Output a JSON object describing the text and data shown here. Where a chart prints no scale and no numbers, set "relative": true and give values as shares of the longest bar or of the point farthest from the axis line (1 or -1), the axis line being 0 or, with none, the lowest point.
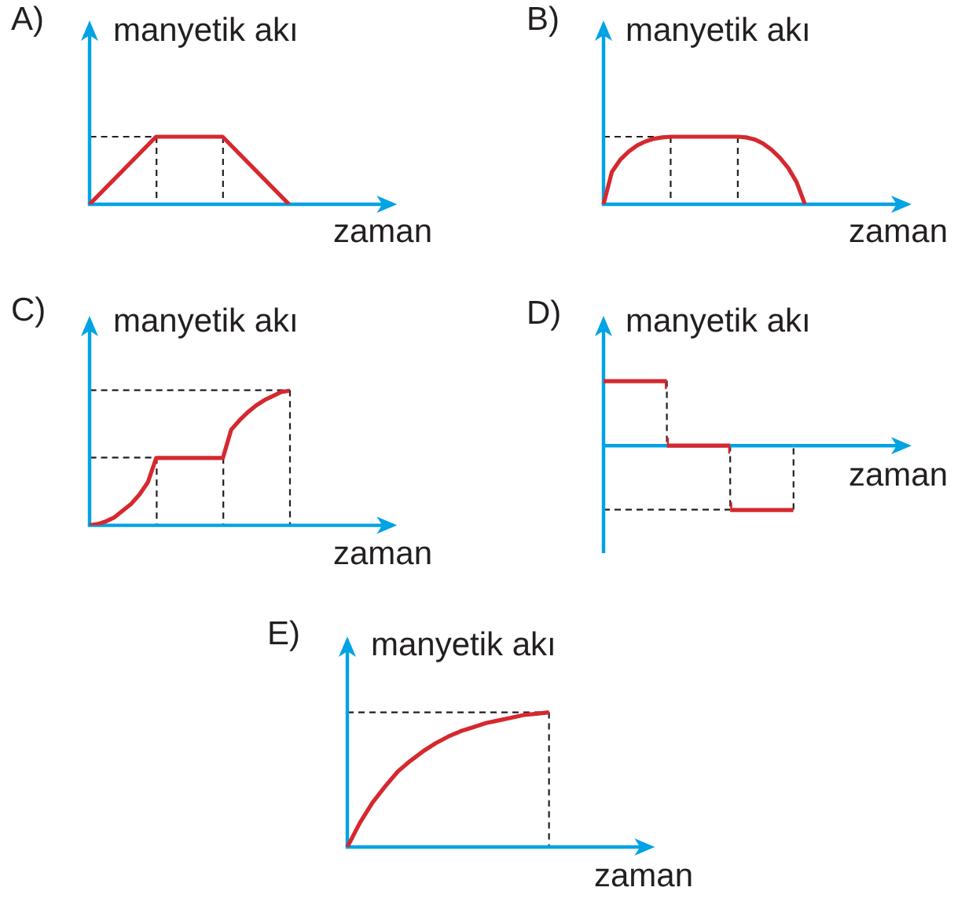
{
  "chart_data": [
    {
      "type": "line",
      "title": "A)",
      "xlabel": "zaman",
      "ylabel": "manyetik akı",
      "relative": true,
      "tick_labels": false,
      "categories": [
        null,
        null,
        null,
        null
      ],
      "series": [
        {
          "color": "#d6282e",
          "values": [
            0,
            1,
            1,
            0
          ]
        }
      ]
    },
    {
      "type": "line",
      "title": "B)",
      "xlabel": "zaman",
      "ylabel": "manyetik akı",
      "relative": true,
      "tick_labels": false,
      "categories": [
        null,
        null,
        null,
        null,
        null,
        null,
        null,
        null,
        null,
        null,
        null,
        null,
        null,
        null,
        null,
        null,
        null,
        null,
        null,
        null,
        null,
        null,
        null,
        null,
        null
      ],
      "series": [
        {
          "color": "#d6282e",
          "values": [
            0,
            0.48,
            0.66,
            0.78,
            0.87,
            0.93,
            0.97,
            0.99,
            1,
            1,
            1,
            1,
            1,
            1,
            1,
            1,
            1,
            0.99,
            0.96,
            0.9,
            0.81,
            0.69,
            0.54,
            0.33,
            0
          ]
        }
      ]
    },
    {
      "type": "line",
      "title": "C)",
      "xlabel": "zaman",
      "ylabel": "manyetik akı",
      "relative": true,
      "tick_labels": false,
      "categories": [
        null,
        null,
        null,
        null,
        null,
        null,
        null,
        null,
        null,
        null,
        null,
        null,
        null,
        null,
        null,
        null,
        null,
        null,
        null,
        null,
        null,
        null,
        null,
        null,
        null
      ],
      "series": [
        {
          "color": "#d6282e",
          "values": [
            0,
            0.01,
            0.03,
            0.06,
            0.11,
            0.16,
            0.23,
            0.32,
            0.5,
            0.5,
            0.5,
            0.5,
            0.5,
            0.5,
            0.5,
            0.5,
            0.5,
            0.71,
            0.78,
            0.84,
            0.89,
            0.93,
            0.96,
            0.99,
            1
          ]
        }
      ]
    },
    {
      "type": "step",
      "title": "D)",
      "xlabel": "zaman",
      "ylabel": "manyetik akı",
      "relative": true,
      "tick_labels": false,
      "categories": [
        null,
        null,
        null,
        null
      ],
      "series": [
        {
          "color": "#d6282e",
          "values": [
            1,
            0,
            -1,
            -1
          ]
        }
      ],
      "ref_lines": [
        {
          "axis": "y",
          "value": 0,
          "color": "#00a3e4"
        }
      ]
    },
    {
      "type": "line",
      "title": "E)",
      "xlabel": "zaman",
      "ylabel": "manyetik akı",
      "relative": true,
      "tick_labels": false,
      "categories": [
        null,
        null,
        null,
        null,
        null,
        null,
        null,
        null,
        null,
        null,
        null,
        null,
        null,
        null,
        null,
        null,
        null
      ],
      "series": [
        {
          "color": "#d6282e",
          "values": [
            0,
            0.18,
            0.33,
            0.45,
            0.56,
            0.64,
            0.71,
            0.77,
            0.82,
            0.86,
            0.89,
            0.92,
            0.94,
            0.96,
            0.98,
            0.99,
            1
          ]
        }
      ]
    }
  ]
}
